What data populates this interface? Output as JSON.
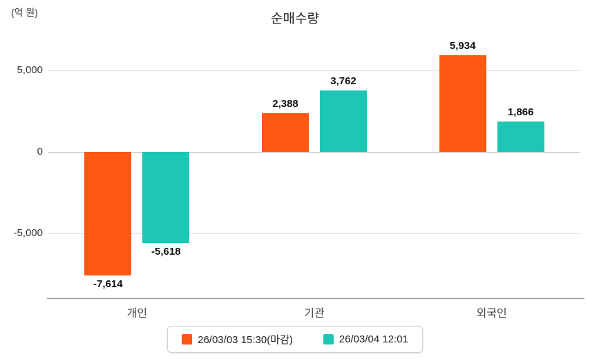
{
  "title": "순매수량",
  "unit_label": "(억 원)",
  "chart_data": {
    "type": "bar",
    "title": "순매수량",
    "ylabel": "(억 원)",
    "xlabel": "",
    "categories": [
      "개인",
      "기관",
      "외국인"
    ],
    "series": [
      {
        "name": "26/03/03 15:30(마감)",
        "color": "#FF5714",
        "values": [
          -7614,
          2388,
          5934
        ],
        "labels": [
          "-7,614",
          "2,388",
          "5,934"
        ]
      },
      {
        "name": "26/03/04 12:01",
        "color": "#1EC7B5",
        "values": [
          -5618,
          3762,
          1866
        ],
        "labels": [
          "-5,618",
          "3,762",
          "1,866"
        ]
      }
    ],
    "yticks": [
      {
        "value": 5000,
        "label": "5,000"
      },
      {
        "value": 0,
        "label": "0"
      },
      {
        "value": -5000,
        "label": "-5,000"
      }
    ],
    "ylim": [
      -9000,
      7000
    ],
    "grid": true,
    "legend_position": "bottom"
  }
}
